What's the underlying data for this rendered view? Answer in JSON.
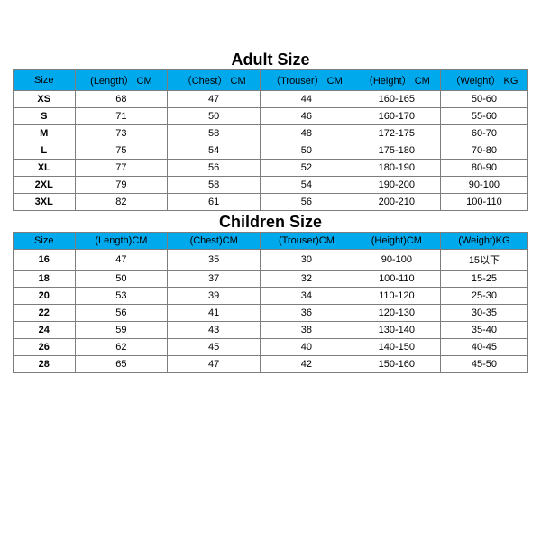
{
  "adult": {
    "title": "Adult Size",
    "title_fontsize": 18,
    "header_bg": "#00a8ec",
    "header_color": "#000000",
    "header_fontsize": 11,
    "body_fontsize": 11,
    "border_color": "#7d7d7d",
    "columns": [
      "Size",
      "(Length） CM",
      "（Chest） CM",
      "（Trouser） CM",
      "（Height） CM",
      "（Weight） KG"
    ],
    "col_widths_pct": [
      12,
      18,
      18,
      18,
      17,
      17
    ],
    "rows": [
      [
        "XS",
        "68",
        "47",
        "44",
        "160-165",
        "50-60"
      ],
      [
        "S",
        "71",
        "50",
        "46",
        "160-170",
        "55-60"
      ],
      [
        "M",
        "73",
        "58",
        "48",
        "172-175",
        "60-70"
      ],
      [
        "L",
        "75",
        "54",
        "50",
        "175-180",
        "70-80"
      ],
      [
        "XL",
        "77",
        "56",
        "52",
        "180-190",
        "80-90"
      ],
      [
        "2XL",
        "79",
        "58",
        "54",
        "190-200",
        "90-100"
      ],
      [
        "3XL",
        "82",
        "61",
        "56",
        "200-210",
        "100-110"
      ]
    ]
  },
  "children": {
    "title": "Children Size",
    "title_fontsize": 18,
    "header_bg": "#00a8ec",
    "header_color": "#000000",
    "header_fontsize": 11,
    "body_fontsize": 11,
    "border_color": "#7d7d7d",
    "columns": [
      "Size",
      "(Length)CM",
      "(Chest)CM",
      "(Trouser)CM",
      "(Height)CM",
      "(Weight)KG"
    ],
    "col_widths_pct": [
      12,
      18,
      18,
      18,
      17,
      17
    ],
    "rows": [
      [
        "16",
        "47",
        "35",
        "30",
        "90-100",
        "15以下"
      ],
      [
        "18",
        "50",
        "37",
        "32",
        "100-110",
        "15-25"
      ],
      [
        "20",
        "53",
        "39",
        "34",
        "110-120",
        "25-30"
      ],
      [
        "22",
        "56",
        "41",
        "36",
        "120-130",
        "30-35"
      ],
      [
        "24",
        "59",
        "43",
        "38",
        "130-140",
        "35-40"
      ],
      [
        "26",
        "62",
        "45",
        "40",
        "140-150",
        "40-45"
      ],
      [
        "28",
        "65",
        "47",
        "42",
        "150-160",
        "45-50"
      ]
    ]
  }
}
